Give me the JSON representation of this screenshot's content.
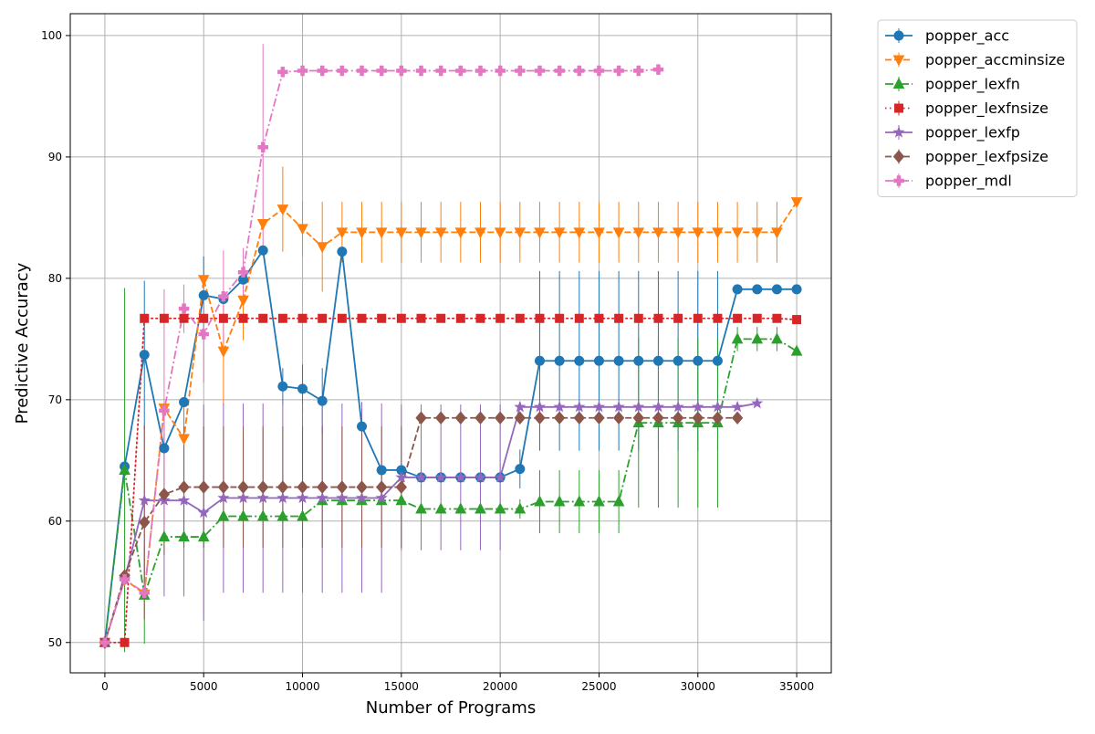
{
  "chart_data": {
    "type": "line",
    "title": "",
    "xlabel": "Number of Programs",
    "ylabel": "Predictive Accuracy",
    "xlim": [
      -1750,
      36750
    ],
    "ylim": [
      47.5,
      101.8
    ],
    "xticks": [
      0,
      5000,
      10000,
      15000,
      20000,
      25000,
      30000,
      35000
    ],
    "yticks": [
      50,
      60,
      70,
      80,
      90,
      100
    ],
    "grid": true,
    "legend_position": "outside-top-right",
    "series": [
      {
        "name": "popper_acc",
        "color": "#1f77b4",
        "marker": "circle",
        "linestyle": "solid",
        "x": [
          0,
          1000,
          2000,
          3000,
          4000,
          5000,
          6000,
          7000,
          8000,
          9000,
          10000,
          11000,
          12000,
          13000,
          14000,
          15000,
          16000,
          17000,
          18000,
          19000,
          20000,
          21000,
          22000,
          23000,
          24000,
          25000,
          26000,
          27000,
          28000,
          29000,
          30000,
          31000,
          32000,
          33000,
          34000,
          35000
        ],
        "y": [
          50,
          64.5,
          73.7,
          66,
          69.8,
          78.6,
          78.3,
          79.9,
          82.3,
          71.1,
          70.9,
          69.9,
          82.2,
          67.8,
          64.2,
          64.2,
          63.6,
          63.6,
          63.6,
          63.6,
          63.6,
          64.3,
          73.2,
          73.2,
          73.2,
          73.2,
          73.2,
          73.2,
          73.2,
          73.2,
          73.2,
          73.2,
          79.1,
          79.1,
          79.1,
          79.1
        ],
        "err": [
          0,
          0,
          6.1,
          0,
          0,
          3.2,
          0,
          0,
          0,
          1.5,
          2,
          2.7,
          0,
          2,
          0,
          0,
          0,
          0,
          0,
          0,
          0,
          1.6,
          7.4,
          7.4,
          7.4,
          7.4,
          7.4,
          7.4,
          7.4,
          7.4,
          7.4,
          7.4,
          0,
          0,
          0,
          0
        ]
      },
      {
        "name": "popper_accminsize",
        "color": "#ff7f0e",
        "marker": "triangle-down",
        "linestyle": "dashed",
        "x": [
          0,
          1000,
          2000,
          3000,
          4000,
          5000,
          6000,
          7000,
          8000,
          9000,
          10000,
          11000,
          12000,
          13000,
          14000,
          15000,
          16000,
          17000,
          18000,
          19000,
          20000,
          21000,
          22000,
          23000,
          24000,
          25000,
          26000,
          27000,
          28000,
          29000,
          30000,
          31000,
          32000,
          33000,
          34000,
          35000
        ],
        "y": [
          50,
          55.2,
          54,
          69.3,
          66.8,
          79.9,
          74,
          78.2,
          84.5,
          85.7,
          84.1,
          82.6,
          83.8,
          83.8,
          83.8,
          83.8,
          83.8,
          83.8,
          83.8,
          83.8,
          83.8,
          83.8,
          83.8,
          83.8,
          83.8,
          83.8,
          83.8,
          83.8,
          83.8,
          83.8,
          83.8,
          83.8,
          83.8,
          83.8,
          83.8,
          86.3
        ],
        "err": [
          0,
          0,
          0,
          0,
          0,
          0,
          4.5,
          3.3,
          0,
          3.5,
          2.3,
          3.7,
          2.5,
          2.5,
          2.5,
          2.5,
          2.5,
          2.5,
          2.5,
          2.5,
          2.5,
          2.5,
          2.5,
          2.5,
          2.5,
          2.5,
          2.5,
          2.5,
          2.5,
          2.5,
          2.5,
          2.5,
          2.5,
          2.5,
          2.5,
          0
        ]
      },
      {
        "name": "popper_lexfn",
        "color": "#2ca02c",
        "marker": "triangle-up",
        "linestyle": "dashdot",
        "x": [
          0,
          1000,
          2000,
          3000,
          4000,
          5000,
          6000,
          7000,
          8000,
          9000,
          10000,
          11000,
          12000,
          13000,
          14000,
          15000,
          16000,
          17000,
          18000,
          19000,
          20000,
          21000,
          22000,
          23000,
          24000,
          25000,
          26000,
          27000,
          28000,
          29000,
          30000,
          31000,
          32000,
          33000,
          34000,
          35000
        ],
        "y": [
          50,
          64.2,
          53.9,
          58.7,
          58.7,
          58.7,
          60.4,
          60.4,
          60.4,
          60.4,
          60.4,
          61.7,
          61.7,
          61.7,
          61.7,
          61.7,
          61,
          61,
          61,
          61,
          61,
          61,
          61.6,
          61.6,
          61.6,
          61.6,
          61.6,
          68.1,
          68.1,
          68.1,
          68.1,
          68.1,
          75,
          75,
          75,
          74
        ],
        "err": [
          0,
          15,
          4,
          0,
          0,
          0,
          0,
          0,
          0,
          0,
          0,
          0,
          0,
          0,
          0,
          0,
          0,
          0,
          0,
          0,
          0,
          0.8,
          2.6,
          2.6,
          2.6,
          2.6,
          2.6,
          7,
          7,
          7,
          7,
          7,
          1,
          1,
          1,
          0
        ]
      },
      {
        "name": "popper_lexfnsize",
        "color": "#d62728",
        "marker": "square",
        "linestyle": "dotted",
        "x": [
          0,
          1000,
          2000,
          3000,
          4000,
          5000,
          6000,
          7000,
          8000,
          9000,
          10000,
          11000,
          12000,
          13000,
          14000,
          15000,
          16000,
          17000,
          18000,
          19000,
          20000,
          21000,
          22000,
          23000,
          24000,
          25000,
          26000,
          27000,
          28000,
          29000,
          30000,
          31000,
          32000,
          33000,
          34000,
          35000
        ],
        "y": [
          50,
          50,
          76.7,
          76.7,
          76.7,
          76.7,
          76.7,
          76.7,
          76.7,
          76.7,
          76.7,
          76.7,
          76.7,
          76.7,
          76.7,
          76.7,
          76.7,
          76.7,
          76.7,
          76.7,
          76.7,
          76.7,
          76.7,
          76.7,
          76.7,
          76.7,
          76.7,
          76.7,
          76.7,
          76.7,
          76.7,
          76.7,
          76.7,
          76.7,
          76.7,
          76.6
        ],
        "err": [
          0,
          0,
          0,
          0,
          0,
          0,
          0,
          0,
          0,
          0,
          0,
          0,
          0,
          0,
          0,
          0,
          0,
          0,
          0,
          0,
          0,
          0,
          0,
          0,
          0,
          0,
          0,
          0,
          0,
          0,
          0,
          0,
          0,
          0,
          0,
          0
        ]
      },
      {
        "name": "popper_lexfp",
        "color": "#9467bd",
        "marker": "star",
        "linestyle": "solid",
        "x": [
          0,
          1000,
          2000,
          3000,
          4000,
          5000,
          6000,
          7000,
          8000,
          9000,
          10000,
          11000,
          12000,
          13000,
          14000,
          15000,
          16000,
          17000,
          18000,
          19000,
          20000,
          21000,
          22000,
          23000,
          24000,
          25000,
          26000,
          27000,
          28000,
          29000,
          30000,
          31000,
          32000,
          33000
        ],
        "y": [
          50,
          55.2,
          61.7,
          61.7,
          61.7,
          60.7,
          61.9,
          61.9,
          61.9,
          61.9,
          61.9,
          61.9,
          61.9,
          61.9,
          61.9,
          63.6,
          63.6,
          63.6,
          63.6,
          63.6,
          63.6,
          69.4,
          69.4,
          69.4,
          69.4,
          69.4,
          69.4,
          69.4,
          69.4,
          69.4,
          69.4,
          69.4,
          69.4,
          69.7
        ],
        "err": [
          0,
          0,
          6.1,
          7.9,
          7.9,
          8.9,
          7.8,
          7.8,
          7.8,
          7.8,
          7.8,
          7.8,
          7.8,
          7.8,
          7.8,
          6,
          6,
          6,
          6,
          6,
          6,
          0,
          0,
          0,
          0,
          0,
          0,
          0,
          0,
          0,
          0,
          0,
          0,
          0
        ]
      },
      {
        "name": "popper_lexfpsize",
        "color": "#8c564b",
        "marker": "diamond",
        "linestyle": "dashed",
        "x": [
          0,
          1000,
          2000,
          3000,
          4000,
          5000,
          6000,
          7000,
          8000,
          9000,
          10000,
          11000,
          12000,
          13000,
          14000,
          15000,
          16000,
          17000,
          18000,
          19000,
          20000,
          21000,
          22000,
          23000,
          24000,
          25000,
          26000,
          27000,
          28000,
          29000,
          30000,
          31000,
          32000
        ],
        "y": [
          50,
          55.5,
          59.9,
          62.2,
          62.8,
          62.8,
          62.8,
          62.8,
          62.8,
          62.8,
          62.8,
          62.8,
          62.8,
          62.8,
          62.8,
          62.8,
          68.5,
          68.5,
          68.5,
          68.5,
          68.5,
          68.5,
          68.5,
          68.5,
          68.5,
          68.5,
          68.5,
          68.5,
          68.5,
          68.5,
          68.5,
          68.5,
          68.5
        ],
        "err": [
          0,
          0,
          8,
          5,
          5,
          5,
          5,
          5,
          5,
          5,
          5,
          5,
          5,
          5,
          5,
          5,
          0,
          0,
          0,
          0,
          0,
          0,
          0,
          0,
          0,
          0,
          0,
          0,
          0,
          0,
          0,
          0,
          0
        ]
      },
      {
        "name": "popper_mdl",
        "color": "#e377c2",
        "marker": "plus",
        "linestyle": "dashdot",
        "x": [
          0,
          1000,
          2000,
          3000,
          4000,
          5000,
          6000,
          7000,
          8000,
          9000,
          10000,
          11000,
          12000,
          13000,
          14000,
          15000,
          16000,
          17000,
          18000,
          19000,
          20000,
          21000,
          22000,
          23000,
          24000,
          25000,
          26000,
          27000,
          28000
        ],
        "y": [
          50,
          55.2,
          54.1,
          69.1,
          77.5,
          75.4,
          78.5,
          80.5,
          90.8,
          97,
          97.1,
          97.1,
          97.1,
          97.1,
          97.1,
          97.1,
          97.1,
          97.1,
          97.1,
          97.1,
          97.1,
          97.1,
          97.1,
          97.1,
          97.1,
          97.1,
          97.1,
          97.1,
          97.2
        ],
        "err": [
          0,
          0,
          0,
          10,
          2,
          4,
          3.8,
          2,
          8.5,
          0,
          0,
          0,
          0,
          0,
          0,
          0,
          0,
          0,
          0,
          0,
          0,
          0,
          0,
          0,
          0,
          0,
          0,
          0,
          0
        ]
      }
    ]
  }
}
